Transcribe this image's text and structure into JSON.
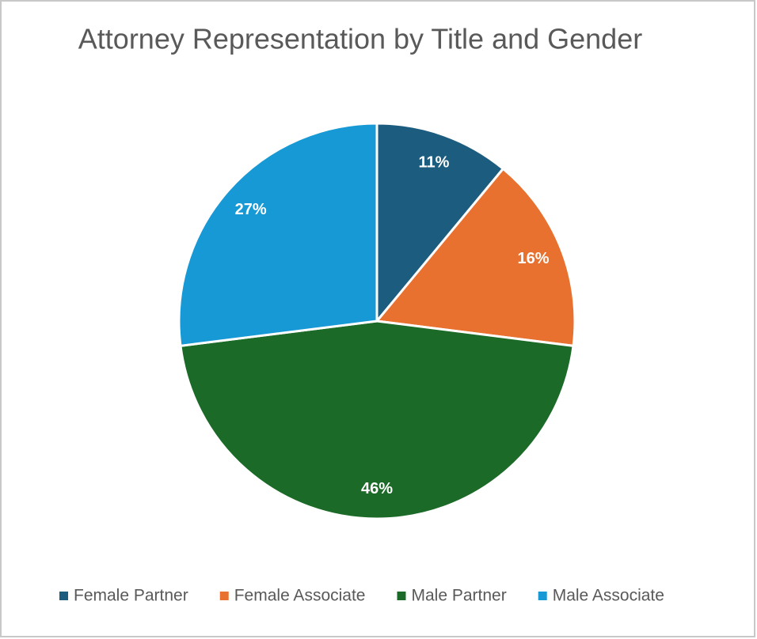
{
  "chart_data": {
    "type": "pie",
    "title": "Attorney Representation by Title and Gender",
    "categories": [
      "Female Partner",
      "Female Associate",
      "Male Partner",
      "Male Associate"
    ],
    "values": [
      11,
      16,
      46,
      27
    ],
    "value_labels": [
      "11%",
      "16%",
      "46%",
      "27%"
    ],
    "colors": [
      "#1b5c7f",
      "#e8712f",
      "#1b6a27",
      "#1699d5"
    ],
    "legend": "bottom"
  }
}
